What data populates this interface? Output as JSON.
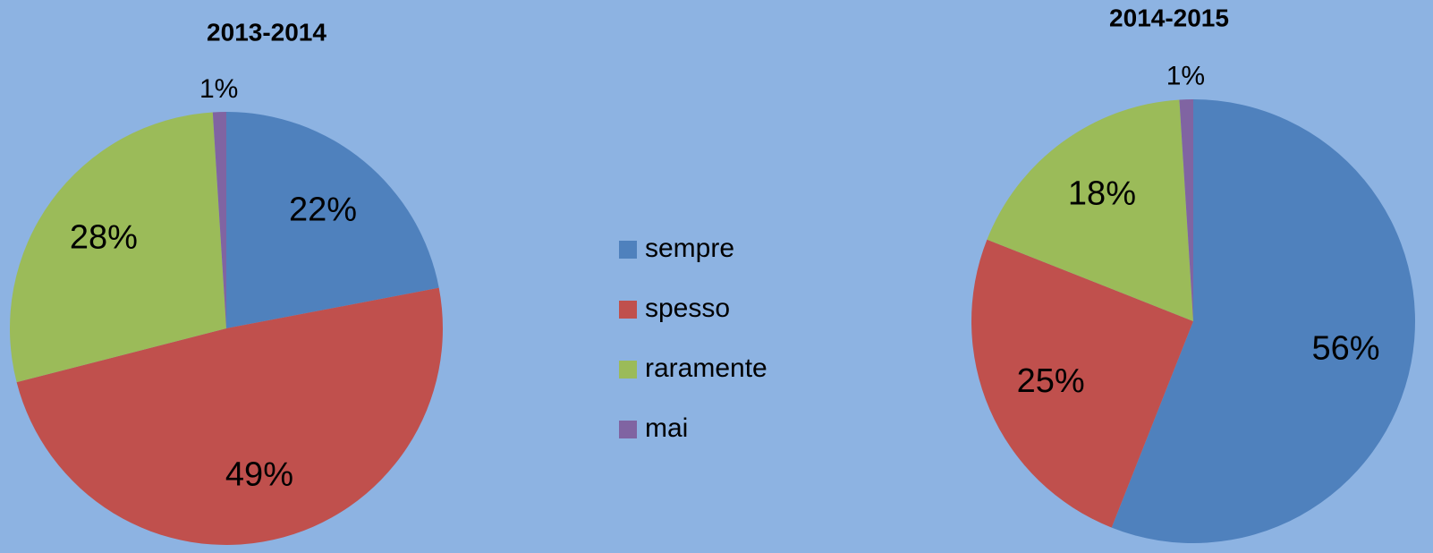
{
  "chart_data": [
    {
      "type": "pie",
      "title": "2013-2014",
      "categories": [
        "sempre",
        "spesso",
        "raramente",
        "mai"
      ],
      "values": [
        22,
        49,
        28,
        1
      ],
      "value_labels": [
        "22%",
        "49%",
        "28%",
        "1%"
      ],
      "colors": [
        "#4f81bd",
        "#c0504d",
        "#9bbb59",
        "#8064a2"
      ]
    },
    {
      "type": "pie",
      "title": "2014-2015",
      "categories": [
        "sempre",
        "spesso",
        "raramente",
        "mai"
      ],
      "values": [
        56,
        25,
        18,
        1
      ],
      "value_labels": [
        "56%",
        "25%",
        "18%",
        "1%"
      ],
      "colors": [
        "#4f81bd",
        "#c0504d",
        "#9bbb59",
        "#8064a2"
      ]
    }
  ]
}
